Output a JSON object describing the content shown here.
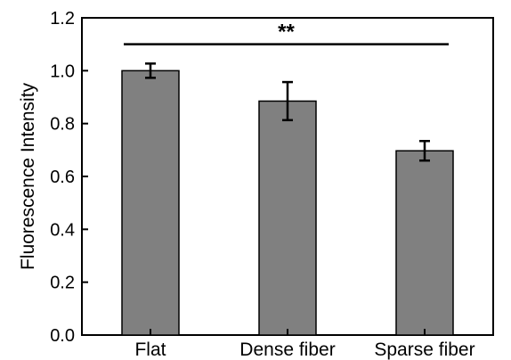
{
  "chart_data": {
    "type": "bar",
    "categories": [
      "Flat",
      "Dense fiber",
      "Sparse fiber"
    ],
    "series": [
      {
        "values": [
          1.0,
          0.885,
          0.697
        ],
        "error": [
          0.027,
          0.072,
          0.037
        ]
      }
    ],
    "ylabel": "Fluorescence Intensity",
    "xlabel": "",
    "ylim": [
      0.0,
      1.2
    ],
    "yticks": [
      "0.0",
      "0.2",
      "0.4",
      "0.6",
      "0.8",
      "1.0",
      "1.2"
    ],
    "significance": {
      "label": "**",
      "from_category": "Flat",
      "to_category": "Sparse fiber",
      "y": 1.1
    },
    "grid": false,
    "legend": "none",
    "colors": {
      "bar_fill": "#808080",
      "bar_stroke": "#000000",
      "axis": "#000000"
    }
  }
}
